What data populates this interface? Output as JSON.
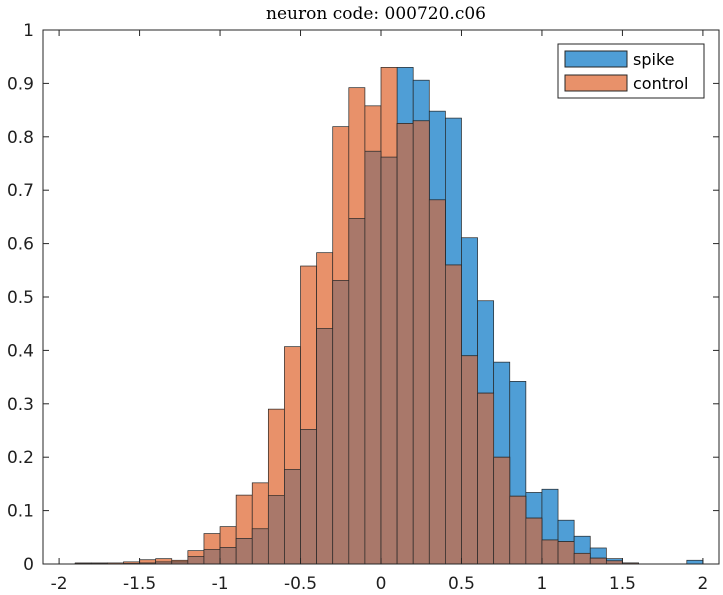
{
  "chart_data": {
    "type": "bar",
    "title": "neuron code: 000720.c06",
    "xlabel": "",
    "ylabel": "",
    "xlim": [
      -2.1,
      2.1
    ],
    "ylim": [
      0,
      1
    ],
    "xticks": [
      -2,
      -1.5,
      -1,
      -0.5,
      0,
      0.5,
      1,
      1.5,
      2
    ],
    "xtick_labels": [
      "-2",
      "-1.5",
      "-1",
      "-0.5",
      "0",
      "0.5",
      "1",
      "1.5",
      "2"
    ],
    "yticks": [
      0,
      0.1,
      0.2,
      0.3,
      0.4,
      0.5,
      0.6,
      0.7,
      0.8,
      0.9,
      1
    ],
    "ytick_labels": [
      "0",
      "0.1",
      "0.2",
      "0.3",
      "0.4",
      "0.5",
      "0.6",
      "0.7",
      "0.8",
      "0.9",
      "1"
    ],
    "grid": false,
    "legend_position": "top-right",
    "bin_width": 0.1,
    "bin_starts": [
      -1.9,
      -1.8,
      -1.7,
      -1.6,
      -1.5,
      -1.4,
      -1.3,
      -1.2,
      -1.1,
      -1.0,
      -0.9,
      -0.8,
      -0.7,
      -0.6,
      -0.5,
      -0.4,
      -0.3,
      -0.2,
      -0.1,
      0.0,
      0.1,
      0.2,
      0.3,
      0.4,
      0.5,
      0.6,
      0.7,
      0.8,
      0.9,
      1.0,
      1.1,
      1.2,
      1.3,
      1.4,
      1.5,
      1.6,
      1.7,
      1.8,
      1.9
    ],
    "series": [
      {
        "name": "spike",
        "color": "#4f9ed6",
        "values": [
          0.001,
          0.001,
          0,
          0.001,
          0.002,
          0.004,
          0.004,
          0.014,
          0.027,
          0.031,
          0.048,
          0.066,
          0.128,
          0.177,
          0.252,
          0.441,
          0.531,
          0.647,
          0.773,
          0.762,
          0.93,
          0.906,
          0.848,
          0.835,
          0.611,
          0.493,
          0.378,
          0.342,
          0.134,
          0.14,
          0.082,
          0.052,
          0.03,
          0.01,
          0.002,
          0,
          0,
          0,
          0.007
        ]
      },
      {
        "name": "control",
        "color": "#e8916a",
        "values": [
          0.002,
          0.002,
          0.002,
          0.004,
          0.008,
          0.01,
          0.007,
          0.025,
          0.057,
          0.07,
          0.129,
          0.152,
          0.29,
          0.407,
          0.558,
          0.583,
          0.819,
          0.892,
          0.858,
          0.93,
          0.825,
          0.83,
          0.682,
          0.56,
          0.39,
          0.32,
          0.2,
          0.127,
          0.086,
          0.045,
          0.042,
          0.02,
          0.011,
          0.006,
          0.002,
          0,
          0,
          0,
          0
        ]
      }
    ]
  }
}
